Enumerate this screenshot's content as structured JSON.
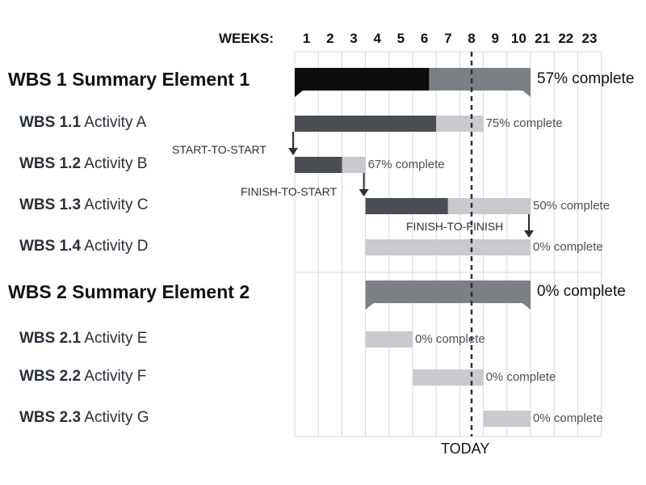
{
  "chart_data": {
    "type": "gantt",
    "weeks_label": "WEEKS:",
    "weeks": [
      "1",
      "2",
      "3",
      "4",
      "5",
      "6",
      "7",
      "8",
      "9",
      "10",
      "21",
      "22",
      "23"
    ],
    "today_label": "TODAY",
    "today_week": 7.5,
    "rows": [
      {
        "id": "WBS 1",
        "name": "Summary Element 1",
        "summary": true,
        "start": 0,
        "end": 10,
        "progress": 0.57,
        "progress_label": "57% complete"
      },
      {
        "id": "WBS 1.1",
        "name": "Activity A",
        "summary": false,
        "start": 0,
        "end": 8,
        "progress": 0.75,
        "progress_label": "75% complete"
      },
      {
        "id": "WBS 1.2",
        "name": "Activity B",
        "summary": false,
        "start": 0,
        "end": 3,
        "progress": 0.67,
        "progress_label": "67% complete"
      },
      {
        "id": "WBS 1.3",
        "name": "Activity C",
        "summary": false,
        "start": 3,
        "end": 10,
        "progress": 0.5,
        "progress_label": "50% complete"
      },
      {
        "id": "WBS 1.4",
        "name": "Activity D",
        "summary": false,
        "start": 3,
        "end": 10,
        "progress": 0,
        "progress_label": "0% complete"
      },
      {
        "id": "WBS 2",
        "name": "Summary Element 2",
        "summary": true,
        "start": 3,
        "end": 10,
        "progress": 0,
        "progress_label": "0% complete"
      },
      {
        "id": "WBS 2.1",
        "name": "Activity E",
        "summary": false,
        "start": 3,
        "end": 5,
        "progress": 0,
        "progress_label": "0% complete"
      },
      {
        "id": "WBS 2.2",
        "name": "Activity F",
        "summary": false,
        "start": 5,
        "end": 8,
        "progress": 0,
        "progress_label": "0% complete"
      },
      {
        "id": "WBS 2.3",
        "name": "Activity G",
        "summary": false,
        "start": 8,
        "end": 10,
        "progress": 0,
        "progress_label": "0% complete"
      }
    ],
    "dependencies": [
      {
        "label": "START-TO-START",
        "from_row": 1,
        "to_row": 2,
        "at": 0
      },
      {
        "label": "FINISH-TO-START",
        "from_row": 2,
        "to_row": 3,
        "at": 3
      },
      {
        "label": "FINISH-TO-FINISH",
        "from_row": 3,
        "to_row": 4,
        "at": 10
      }
    ],
    "colors": {
      "summary_done": "#0d0d0d",
      "summary_rest": "#7c7f84",
      "task_done": "#4a4d52",
      "task_rest": "#c8cacd",
      "grid": "#d8d8d8"
    }
  }
}
